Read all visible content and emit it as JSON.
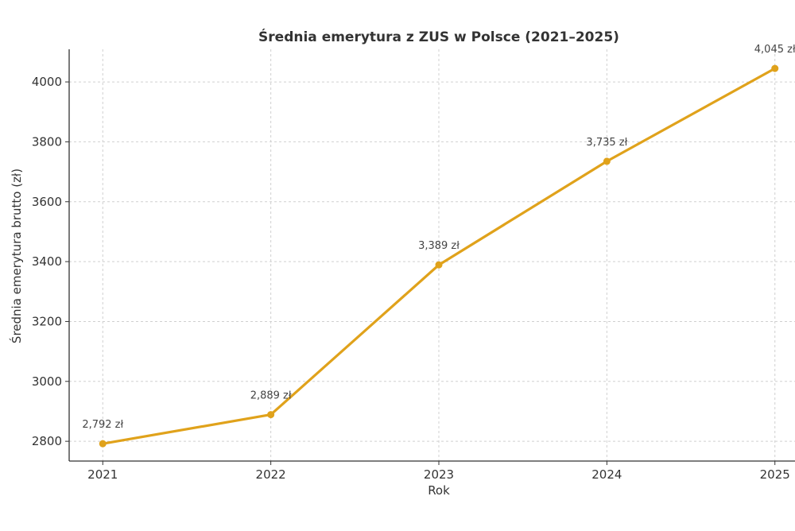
{
  "chart_data": {
    "type": "line",
    "title": "Średnia emerytura z ZUS w Polsce (2021–2025)",
    "xlabel": "Rok",
    "ylabel": "Średnia emerytura brutto (zł)",
    "x": [
      2021,
      2022,
      2023,
      2024,
      2025
    ],
    "values": [
      2792,
      2889,
      3389,
      3735,
      4045
    ],
    "data_labels": [
      "2,792 zł",
      "2,889 zł",
      "3,389 zł",
      "3,735 zł",
      "4,045 zł"
    ],
    "x_ticks": [
      "2021",
      "2022",
      "2023",
      "2024",
      "2025"
    ],
    "y_ticks": [
      "2800",
      "3000",
      "3200",
      "3400",
      "3600",
      "3800",
      "4000"
    ],
    "xlim": [
      2020.8,
      2025.2
    ],
    "ylim": [
      2734,
      4109
    ],
    "grid": true,
    "color": "#E0A21B"
  }
}
